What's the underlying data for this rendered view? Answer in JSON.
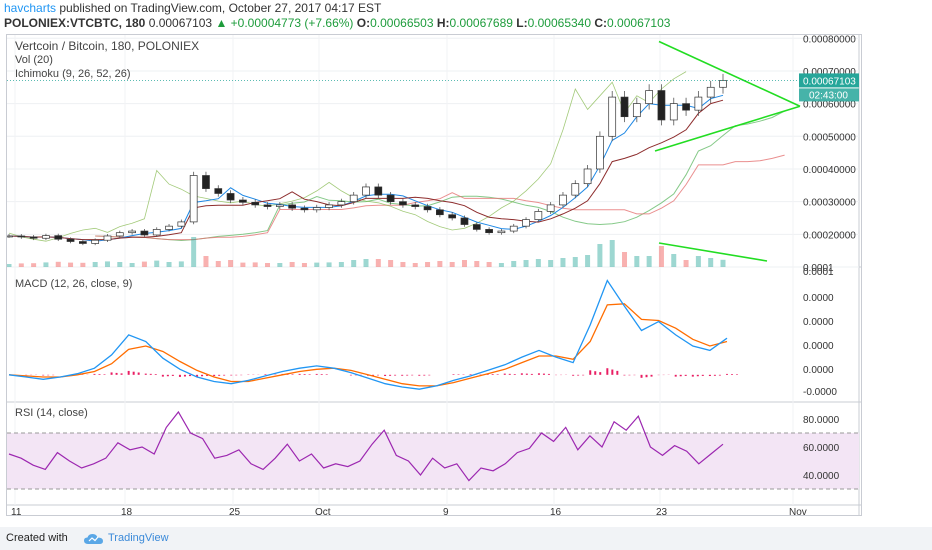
{
  "header": {
    "author": "havcharts",
    "published": "published on TradingView.com, October 27, 2017 04:17 EST",
    "symbol": "POLONIEX:VTCBTC, 180",
    "last": "0.00067103",
    "change": "▲ +0.00004773 (+7.66%)",
    "o_label": "O:",
    "o_value": "0.00066503",
    "h_label": "H:",
    "h_value": "0.00067689",
    "l_label": "L:",
    "l_value": "0.00065340",
    "c_label": "C:",
    "c_value": "0.00067103"
  },
  "legend": {
    "title": "Vertcoin / Bitcoin, 180, POLONIEX",
    "vol": "Vol (20)",
    "ichimoku": "Ichimoku (9, 26, 52, 26)",
    "macd": "MACD (12, 26, close, 9)",
    "rsi": "RSI (14, close)"
  },
  "price_badge": "0.00067103",
  "time_badge": "02:43:00",
  "footer": {
    "created_with": "Created with",
    "brand": "TradingView"
  },
  "colors": {
    "up": "#26a69a",
    "down": "#ef5350",
    "trendline": "#22dd22",
    "macd": "#2196f3",
    "signal": "#ff6d00",
    "hist": "#e91e63",
    "rsi": "#9c27b0",
    "rsi_band": "#f3e5f5",
    "cloud_bull": "#a5d6a7",
    "cloud_bear": "#ef9a9a"
  },
  "chart_data": [
    {
      "type": "candlestick",
      "title": "Vertcoin / Bitcoin, 180, POLONIEX",
      "y_ticks": [
        "0.00080000",
        "0.00070000",
        "0.00060000",
        "0.00050000",
        "0.00040000",
        "0.00030000",
        "0.00020000",
        "0.0001"
      ],
      "ylim": [
        0.0001,
        0.00081
      ],
      "x_ticks": [
        "11",
        "18",
        "25",
        "Oct",
        "9",
        "16",
        "23",
        "Nov"
      ],
      "last_price": 0.00067103,
      "close_series": [
        0.000195,
        0.000192,
        0.000188,
        0.000196,
        0.000185,
        0.000178,
        0.000172,
        0.000182,
        0.000195,
        0.000205,
        0.00021,
        0.000198,
        0.000215,
        0.000225,
        0.000238,
        0.00038,
        0.00034,
        0.000325,
        0.000305,
        0.000298,
        0.00029,
        0.000285,
        0.00029,
        0.00028,
        0.000275,
        0.000282,
        0.00029,
        0.0003,
        0.00032,
        0.000345,
        0.00032,
        0.0003,
        0.00029,
        0.000285,
        0.000275,
        0.00026,
        0.00025,
        0.00023,
        0.000215,
        0.000205,
        0.00021,
        0.000225,
        0.000245,
        0.00027,
        0.00029,
        0.00032,
        0.000355,
        0.0004,
        0.0005,
        0.00062,
        0.00056,
        0.0006,
        0.00064,
        0.00055,
        0.0006,
        0.00058,
        0.00062,
        0.00065,
        0.000671
      ],
      "volume_annotation": "declining volume trendline",
      "pattern": "symmetrical triangle"
    },
    {
      "type": "line",
      "title": "MACD (12, 26, close, 9)",
      "y_ticks": [
        "0.0001",
        "0.0000",
        "0.0000",
        "0.0000",
        "0.0000",
        "-0.0000"
      ],
      "series": [
        {
          "name": "MACD",
          "values": [
            0,
            -0.2,
            -0.4,
            -0.2,
            0.1,
            0.6,
            1.8,
            3.6,
            3.0,
            1.5,
            0.5,
            -0.2,
            -0.6,
            -0.8,
            -0.5,
            -0.1,
            0.3,
            0.6,
            0.8,
            0.6,
            0.2,
            -0.3,
            -0.8,
            -1.1,
            -1.3,
            -1.0,
            -0.5,
            -0.1,
            0.4,
            0.9,
            1.6,
            2.2,
            1.6,
            1.1,
            4.5,
            8.5,
            6.2,
            4.0,
            4.8,
            3.6,
            2.6,
            2.2,
            3.3
          ]
        },
        {
          "name": "Signal",
          "values": [
            0,
            -0.1,
            -0.2,
            -0.2,
            0,
            0.3,
            1.0,
            2.3,
            2.6,
            2.1,
            1.2,
            0.4,
            -0.2,
            -0.6,
            -0.6,
            -0.3,
            0,
            0.3,
            0.5,
            0.6,
            0.4,
            0,
            -0.4,
            -0.8,
            -1.0,
            -1.0,
            -0.7,
            -0.3,
            0.1,
            0.5,
            1.1,
            1.7,
            1.7,
            1.4,
            3.0,
            6.3,
            6.4,
            5.0,
            4.9,
            4.2,
            3.2,
            2.6,
            3.0
          ]
        }
      ]
    },
    {
      "type": "line",
      "title": "RSI (14, close)",
      "y_ticks": [
        "80.0000",
        "60.0000",
        "40.0000"
      ],
      "band": [
        30,
        70
      ],
      "values": [
        55,
        52,
        47,
        44,
        56,
        50,
        45,
        48,
        52,
        63,
        58,
        60,
        55,
        74,
        85,
        70,
        66,
        52,
        54,
        58,
        48,
        44,
        52,
        62,
        50,
        55,
        45,
        48,
        46,
        50,
        62,
        72,
        54,
        50,
        40,
        52,
        45,
        48,
        36,
        45,
        43,
        48,
        56,
        59,
        70,
        64,
        74,
        58,
        68,
        60,
        78,
        72,
        82,
        60,
        54,
        61,
        57,
        48,
        55,
        62
      ]
    }
  ]
}
